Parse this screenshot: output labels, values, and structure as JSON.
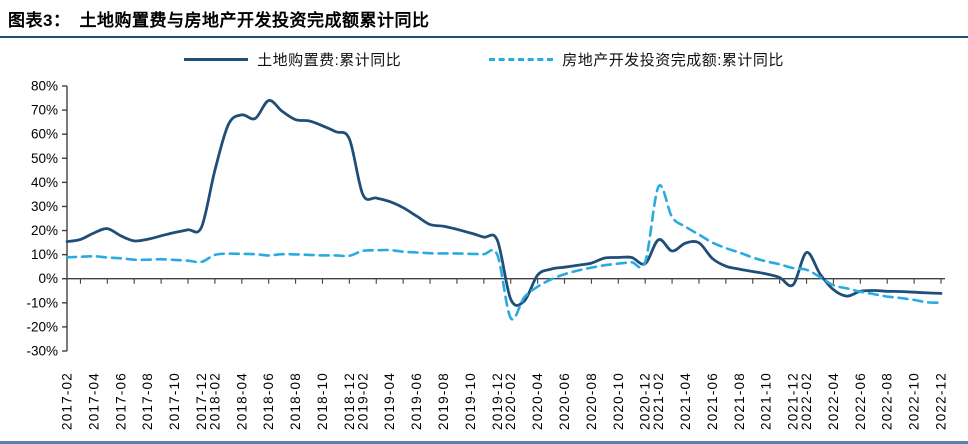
{
  "title": "图表3：　土地购置费与房地产开发投资完成额累计同比",
  "colors": {
    "land_fee_line": "#1F4E79",
    "investment_line": "#29ABE2",
    "title_rule": "#1F4E79",
    "bottom_bar": "#5B82AE",
    "axis": "#404040",
    "text": "#000000"
  },
  "legend": {
    "items": [
      {
        "label": "土地购置费:累计同比",
        "marker": "solid-line"
      },
      {
        "label": "房地产开发投资完成额:累计同比",
        "marker": "dashed-line"
      }
    ]
  },
  "chart_data": {
    "type": "line",
    "title": "土地购置费与房地产开发投资完成额累计同比",
    "xlabel": "",
    "ylabel": "",
    "y_unit": "%",
    "ylim": [
      -30,
      80
    ],
    "ytick_values": [
      80,
      70,
      60,
      50,
      40,
      30,
      20,
      10,
      0,
      -10,
      -20,
      -30
    ],
    "grid": false,
    "legend_position": "top",
    "x": [
      "2017-02",
      "2017-03",
      "2017-04",
      "2017-05",
      "2017-06",
      "2017-07",
      "2017-08",
      "2017-09",
      "2017-10",
      "2017-11",
      "2017-12",
      "2018-02",
      "2018-03",
      "2018-04",
      "2018-05",
      "2018-06",
      "2018-07",
      "2018-08",
      "2018-09",
      "2018-10",
      "2018-11",
      "2018-12",
      "2019-02",
      "2019-03",
      "2019-04",
      "2019-05",
      "2019-06",
      "2019-07",
      "2019-08",
      "2019-09",
      "2019-10",
      "2019-11",
      "2019-12",
      "2020-02",
      "2020-03",
      "2020-04",
      "2020-05",
      "2020-06",
      "2020-07",
      "2020-08",
      "2020-09",
      "2020-10",
      "2020-11",
      "2020-12",
      "2021-02",
      "2021-03",
      "2021-04",
      "2021-05",
      "2021-06",
      "2021-07",
      "2021-08",
      "2021-09",
      "2021-10",
      "2021-11",
      "2021-12",
      "2022-02",
      "2022-03",
      "2022-04",
      "2022-05",
      "2022-06",
      "2022-07",
      "2022-08",
      "2022-09",
      "2022-10",
      "2022-11",
      "2022-12"
    ],
    "xtick_labels": [
      "2017-02",
      "2017-04",
      "2017-06",
      "2017-08",
      "2017-10",
      "2017-12",
      "2018-02",
      "2018-04",
      "2018-06",
      "2018-08",
      "2018-10",
      "2018-12",
      "2019-02",
      "2019-04",
      "2019-06",
      "2019-08",
      "2019-10",
      "2019-12",
      "2020-02",
      "2020-04",
      "2020-06",
      "2020-08",
      "2020-10",
      "2020-12",
      "2021-02",
      "2021-04",
      "2021-06",
      "2021-08",
      "2021-10",
      "2021-12",
      "2022-02",
      "2022-04",
      "2022-06",
      "2022-08",
      "2022-10",
      "2022-12"
    ],
    "series": [
      {
        "name": "土地购置费:累计同比",
        "color": "#1F4E79",
        "dash": false,
        "width": 2.8,
        "values": [
          15.4,
          16.3,
          19.0,
          20.8,
          17.8,
          15.7,
          16.4,
          17.8,
          19.2,
          20.3,
          21.4,
          45.0,
          64.0,
          68.0,
          66.5,
          74.0,
          69.5,
          66.0,
          65.5,
          63.5,
          61.0,
          58.0,
          35.0,
          33.5,
          32.0,
          29.5,
          26.0,
          22.5,
          21.8,
          20.5,
          19.0,
          17.3,
          16.0,
          -8.5,
          -9.3,
          1.5,
          4.0,
          4.8,
          5.6,
          6.5,
          8.6,
          8.8,
          8.8,
          6.3,
          16.2,
          11.5,
          14.8,
          14.9,
          8.4,
          5.2,
          4.0,
          3.0,
          2.0,
          0.5,
          -2.5,
          10.9,
          2.0,
          -4.5,
          -7.2,
          -5.2,
          -4.9,
          -5.2,
          -5.3,
          -5.6,
          -5.9,
          -6.1
        ]
      },
      {
        "name": "房地产开发投资完成额:累计同比",
        "color": "#29ABE2",
        "dash": true,
        "width": 2.6,
        "values": [
          8.9,
          9.1,
          9.3,
          8.8,
          8.5,
          7.9,
          7.9,
          8.1,
          7.8,
          7.5,
          7.0,
          9.9,
          10.4,
          10.3,
          10.2,
          9.7,
          10.2,
          10.1,
          9.9,
          9.7,
          9.7,
          9.5,
          11.6,
          11.8,
          11.9,
          11.2,
          10.9,
          10.6,
          10.5,
          10.5,
          10.3,
          10.2,
          9.9,
          -16.3,
          -7.7,
          -3.3,
          -0.3,
          1.9,
          3.4,
          4.6,
          5.6,
          6.3,
          6.8,
          7.0,
          38.3,
          25.6,
          21.6,
          18.3,
          15.0,
          12.7,
          10.9,
          8.8,
          7.2,
          6.0,
          4.4,
          3.7,
          0.7,
          -2.7,
          -4.0,
          -5.4,
          -6.4,
          -7.4,
          -8.0,
          -8.8,
          -9.8,
          -10.0
        ]
      }
    ]
  }
}
